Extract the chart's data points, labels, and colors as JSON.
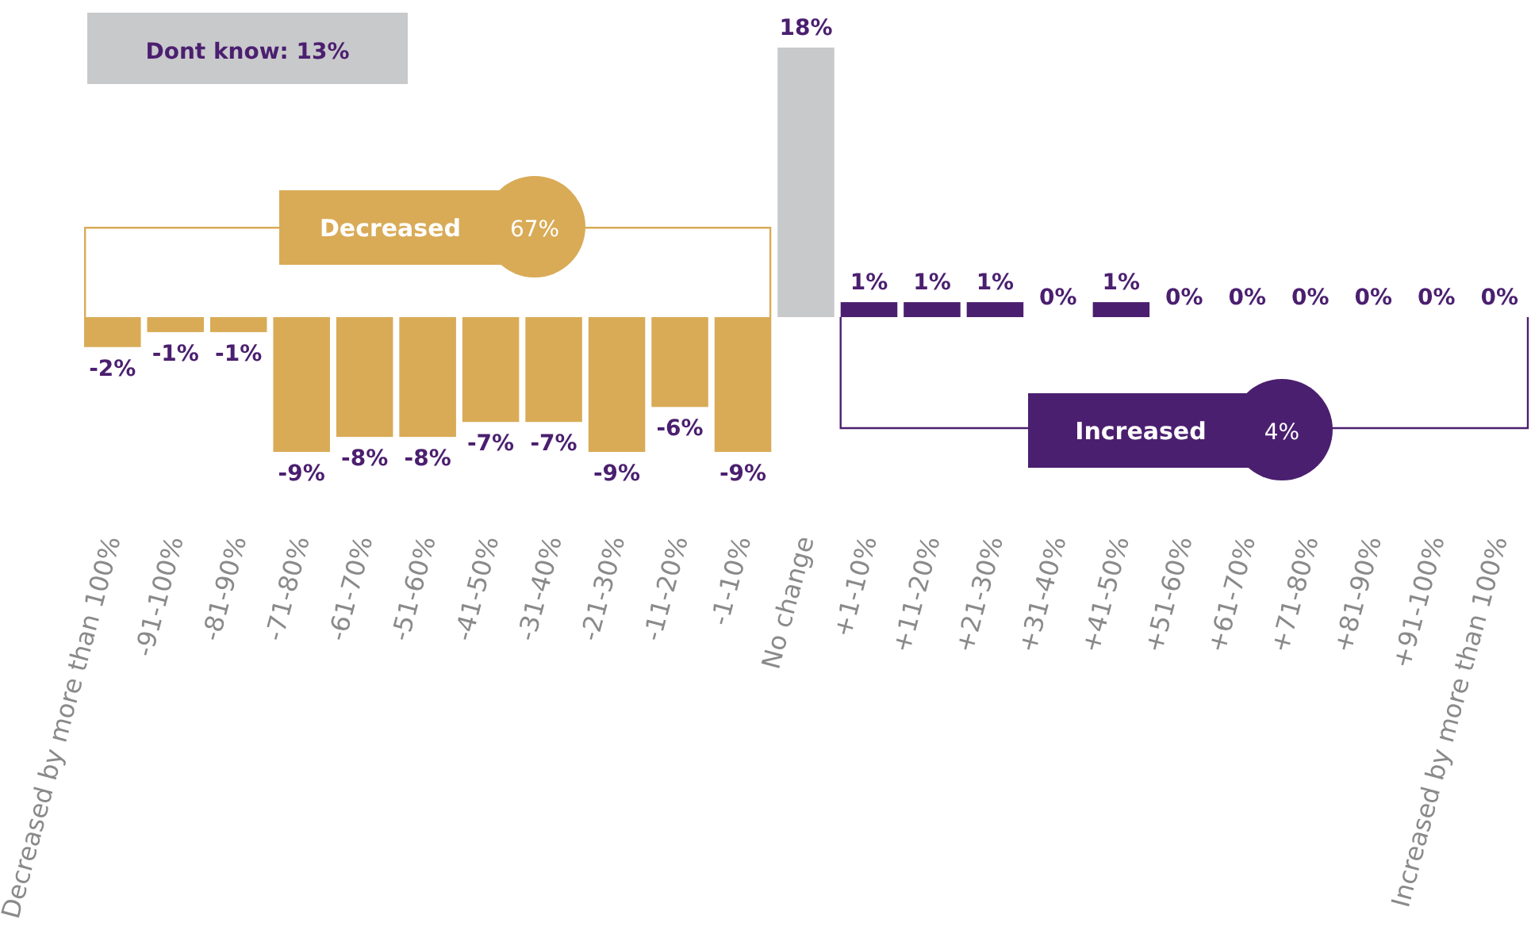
{
  "chart_data": {
    "type": "bar",
    "categories": [
      "Decreased by more than 100%",
      "-91-100%",
      "-81-90%",
      "-71-80%",
      "-61-70%",
      "-51-60%",
      "-41-50%",
      "-31-40%",
      "-21-30%",
      "-11-20%",
      "-1-10%",
      "No change",
      "+1-10%",
      "+11-20%",
      "+21-30%",
      "+31-40%",
      "+41-50%",
      "+51-60%",
      "+61-70%",
      "+71-80%",
      "+81-90%",
      "+91-100%",
      "Increased by more than 100%"
    ],
    "values": [
      -2,
      -1,
      -1,
      -9,
      -8,
      -8,
      -7,
      -7,
      -9,
      -6,
      -9,
      18,
      1,
      1,
      1,
      0,
      1,
      0,
      0,
      0,
      0,
      0,
      0
    ],
    "colors": [
      "#d9ab57",
      "#d9ab57",
      "#d9ab57",
      "#d9ab57",
      "#d9ab57",
      "#d9ab57",
      "#d9ab57",
      "#d9ab57",
      "#d9ab57",
      "#d9ab57",
      "#d9ab57",
      "#c8c9cb",
      "#4b1f6f",
      "#4b1f6f",
      "#4b1f6f",
      "#4b1f6f",
      "#4b1f6f",
      "#4b1f6f",
      "#4b1f6f",
      "#4b1f6f",
      "#4b1f6f",
      "#4b1f6f",
      "#4b1f6f"
    ],
    "value_labels": [
      "-2%",
      "-1%",
      "-1%",
      "-9%",
      "-8%",
      "-8%",
      "-7%",
      "-7%",
      "-9%",
      "-6%",
      "-9%",
      "18%",
      "1%",
      "1%",
      "1%",
      "0%",
      "1%",
      "0%",
      "0%",
      "0%",
      "0%",
      "0%",
      "0%"
    ],
    "annotations": [
      "Dont know: 13%",
      "Decreased",
      "67%",
      "Increased",
      "4%"
    ]
  }
}
